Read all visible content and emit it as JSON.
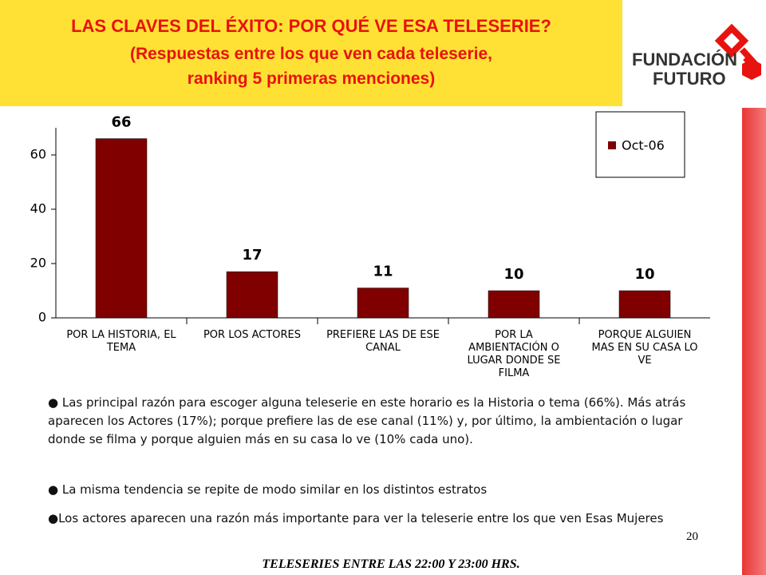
{
  "header": {
    "title": "LAS CLAVES DEL ÉXITO: POR QUÉ VE ESA TELESERIE?",
    "subtitle": "(Respuestas entre los que ven cada teleserie, ranking 5 primeras menciones)",
    "logo_line1": "FUNDACIÓN",
    "logo_line2": "FUTURO"
  },
  "chart_data": {
    "type": "bar",
    "categories": [
      "POR LA HISTORIA, EL TEMA",
      "POR LOS ACTORES",
      "PREFIERE LAS DE ESE CANAL",
      "POR LA AMBIENTACIÓN O LUGAR DONDE SE FILMA",
      "PORQUE ALGUIEN MAS EN SU CASA LO VE"
    ],
    "series": [
      {
        "name": "Oct-06",
        "color": "#800000",
        "values": [
          66,
          17,
          11,
          10,
          10
        ]
      }
    ],
    "ylim": [
      0,
      70
    ],
    "yticks": [
      0,
      20,
      40,
      60
    ],
    "legend": "top-right"
  },
  "bullets": [
    "Las principal razón para escoger alguna teleserie en este horario es la Historia o tema (66%). Más atrás aparecen los Actores (17%); porque prefiere las de ese canal (11%) y,  por último, la ambientación o lugar donde se filma y porque alguien más en su casa lo ve (10% cada uno).",
    "La misma tendencia se repite de modo similar en los distintos estratos",
    "Los actores aparecen una razón más importante para ver la teleserie entre los que ven Esas Mujeres"
  ],
  "footer": {
    "page_number": "20",
    "caption": "TELESERIES ENTRE LAS 22:00 Y 23:00 HRS."
  }
}
